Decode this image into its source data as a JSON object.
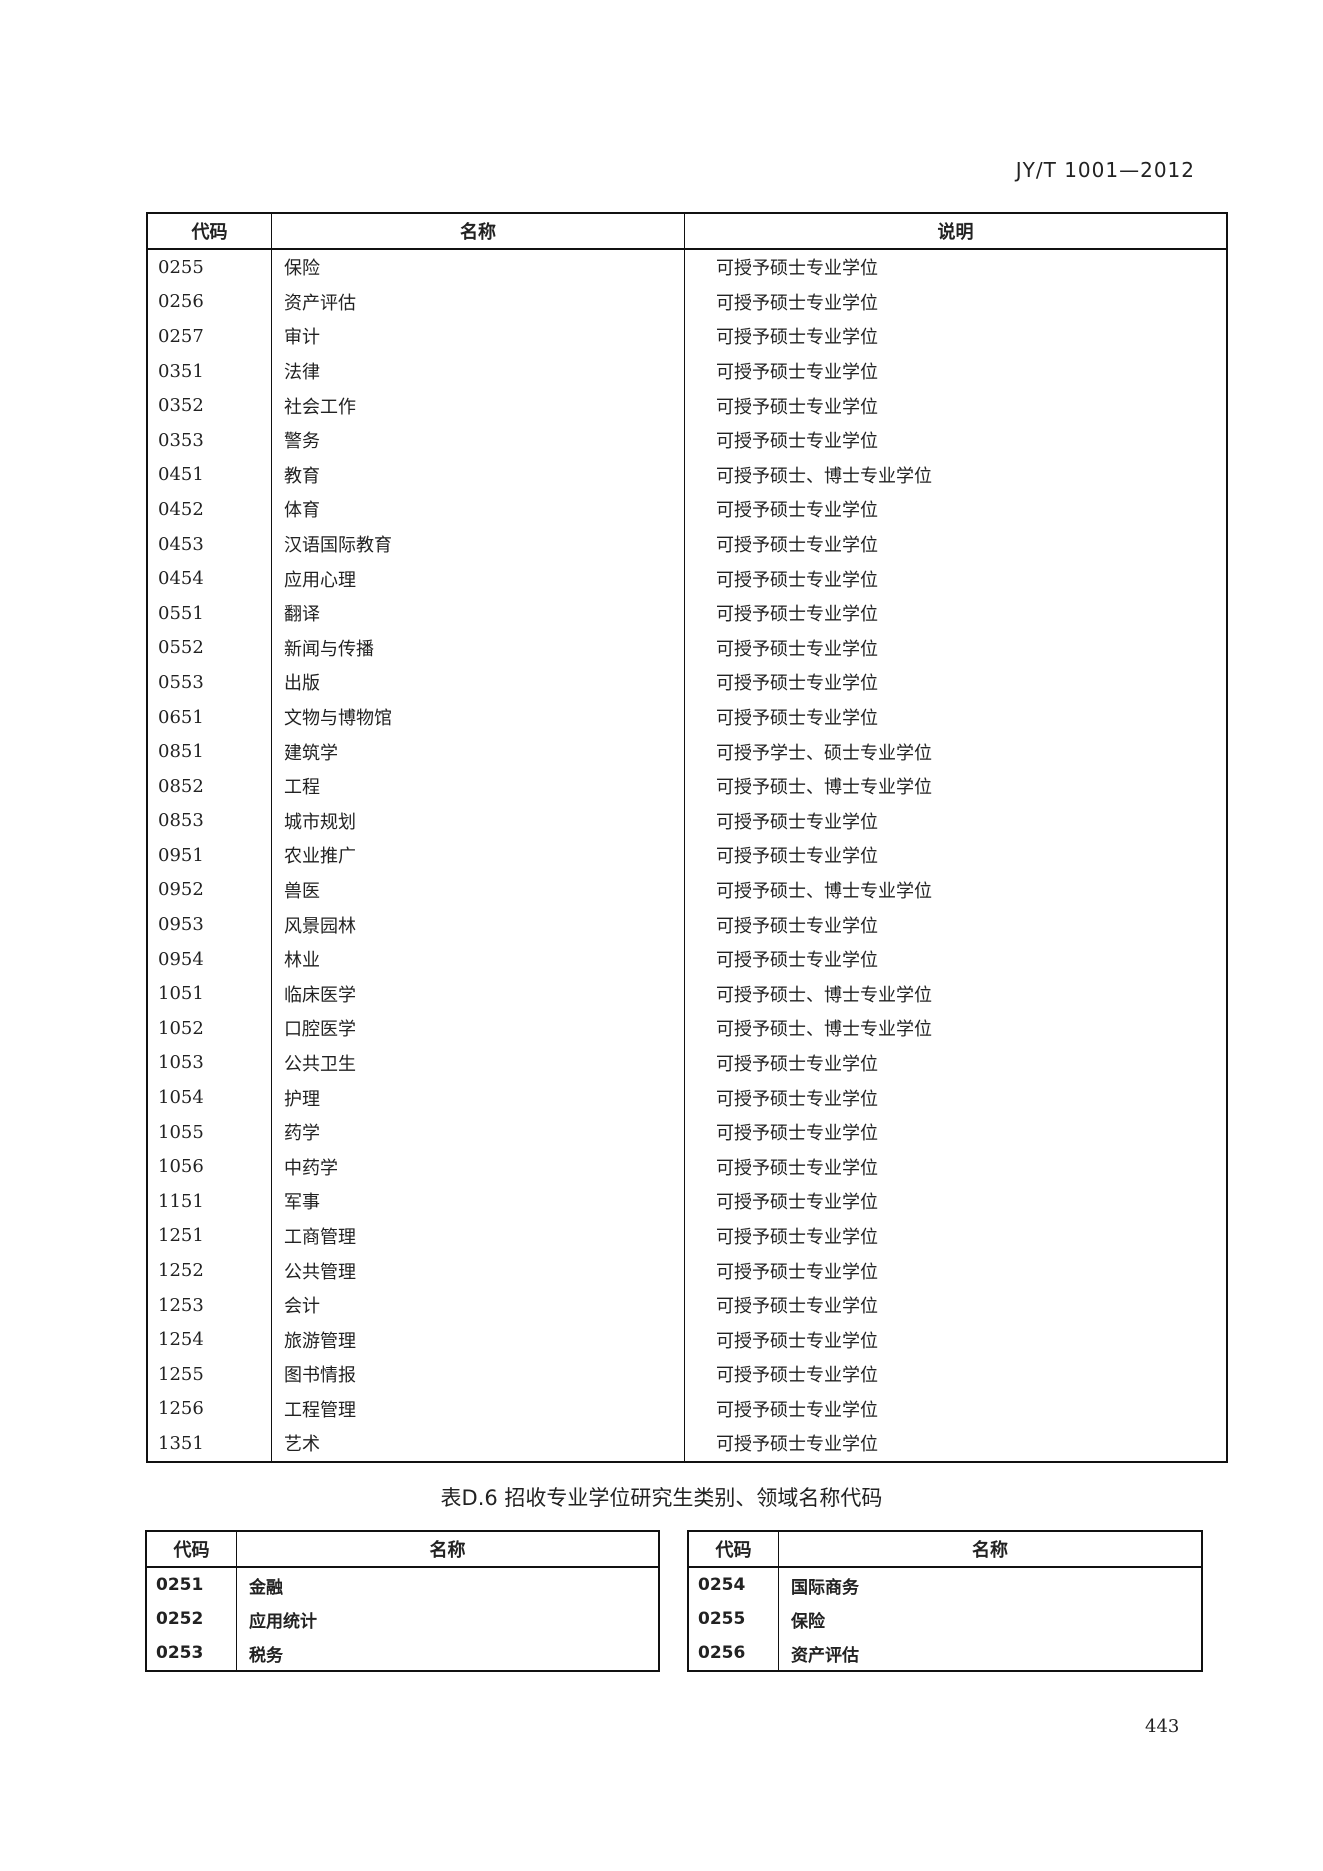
{
  "header": {
    "standard_code": "JY/T 1001—2012"
  },
  "main_table": {
    "columns": [
      "代码",
      "名称",
      "说明"
    ],
    "rows": [
      [
        "0255",
        "保险",
        "可授予硕士专业学位"
      ],
      [
        "0256",
        "资产评估",
        "可授予硕士专业学位"
      ],
      [
        "0257",
        "审计",
        "可授予硕士专业学位"
      ],
      [
        "0351",
        "法律",
        "可授予硕士专业学位"
      ],
      [
        "0352",
        "社会工作",
        "可授予硕士专业学位"
      ],
      [
        "0353",
        "警务",
        "可授予硕士专业学位"
      ],
      [
        "0451",
        "教育",
        "可授予硕士、博士专业学位"
      ],
      [
        "0452",
        "体育",
        "可授予硕士专业学位"
      ],
      [
        "0453",
        "汉语国际教育",
        "可授予硕士专业学位"
      ],
      [
        "0454",
        "应用心理",
        "可授予硕士专业学位"
      ],
      [
        "0551",
        "翻译",
        "可授予硕士专业学位"
      ],
      [
        "0552",
        "新闻与传播",
        "可授予硕士专业学位"
      ],
      [
        "0553",
        "出版",
        "可授予硕士专业学位"
      ],
      [
        "0651",
        "文物与博物馆",
        "可授予硕士专业学位"
      ],
      [
        "0851",
        "建筑学",
        "可授予学士、硕士专业学位"
      ],
      [
        "0852",
        "工程",
        "可授予硕士、博士专业学位"
      ],
      [
        "0853",
        "城市规划",
        "可授予硕士专业学位"
      ],
      [
        "0951",
        "农业推广",
        "可授予硕士专业学位"
      ],
      [
        "0952",
        "兽医",
        "可授予硕士、博士专业学位"
      ],
      [
        "0953",
        "风景园林",
        "可授予硕士专业学位"
      ],
      [
        "0954",
        "林业",
        "可授予硕士专业学位"
      ],
      [
        "1051",
        "临床医学",
        "可授予硕士、博士专业学位"
      ],
      [
        "1052",
        "口腔医学",
        "可授予硕士、博士专业学位"
      ],
      [
        "1053",
        "公共卫生",
        "可授予硕士专业学位"
      ],
      [
        "1054",
        "护理",
        "可授予硕士专业学位"
      ],
      [
        "1055",
        "药学",
        "可授予硕士专业学位"
      ],
      [
        "1056",
        "中药学",
        "可授予硕士专业学位"
      ],
      [
        "1151",
        "军事",
        "可授予硕士专业学位"
      ],
      [
        "1251",
        "工商管理",
        "可授予硕士专业学位"
      ],
      [
        "1252",
        "公共管理",
        "可授予硕士专业学位"
      ],
      [
        "1253",
        "会计",
        "可授予硕士专业学位"
      ],
      [
        "1254",
        "旅游管理",
        "可授予硕士专业学位"
      ],
      [
        "1255",
        "图书情报",
        "可授予硕士专业学位"
      ],
      [
        "1256",
        "工程管理",
        "可授予硕士专业学位"
      ],
      [
        "1351",
        "艺术",
        "可授予硕士专业学位"
      ]
    ]
  },
  "table_d6": {
    "caption": "表D.6  招收专业学位研究生类别、领域名称代码",
    "left": {
      "columns": [
        "代码",
        "名称"
      ],
      "rows": [
        [
          "0251",
          "金融"
        ],
        [
          "0252",
          "应用统计"
        ],
        [
          "0253",
          "税务"
        ]
      ]
    },
    "right": {
      "columns": [
        "代码",
        "名称"
      ],
      "rows": [
        [
          "0254",
          "国际商务"
        ],
        [
          "0255",
          "保险"
        ],
        [
          "0256",
          "资产评估"
        ]
      ]
    }
  },
  "footer": {
    "page_number": "443"
  }
}
